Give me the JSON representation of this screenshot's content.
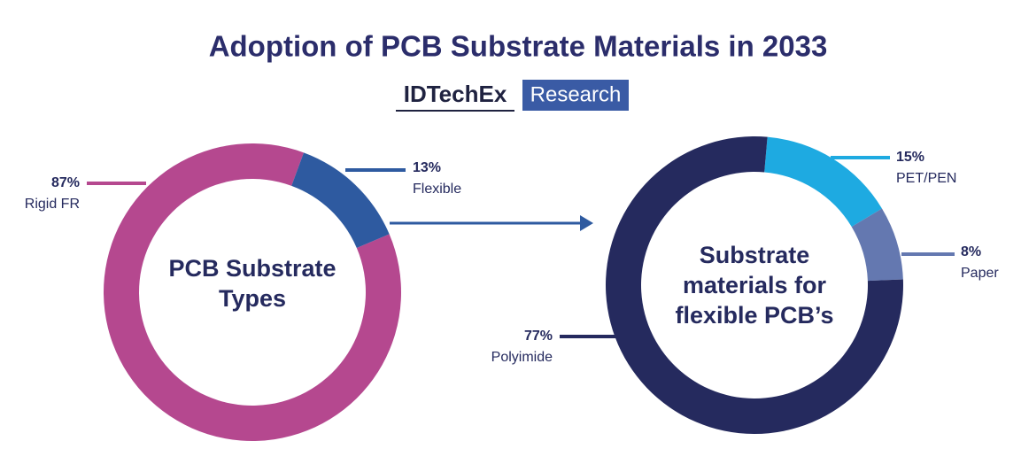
{
  "title": "Adoption of PCB Substrate Materials in 2033",
  "brand": {
    "name": "IDTechEx",
    "label": "Research"
  },
  "chart_data": [
    {
      "type": "donut",
      "center_label": "PCB Substrate Types",
      "categories": [
        "Rigid FR",
        "Flexible"
      ],
      "values": [
        87,
        13
      ],
      "value_labels": [
        "87%",
        "13%"
      ],
      "colors": [
        "#b5488f",
        "#2e5aa0"
      ]
    },
    {
      "type": "donut",
      "center_label": "Substrate materials for flexible PCB’s",
      "categories": [
        "PET/PEN",
        "Paper",
        "Polyimide"
      ],
      "values": [
        15,
        8,
        77
      ],
      "value_labels": [
        "15%",
        "8%",
        "77%"
      ],
      "colors": [
        "#1eaae1",
        "#6478b0",
        "#252a5e"
      ]
    }
  ]
}
